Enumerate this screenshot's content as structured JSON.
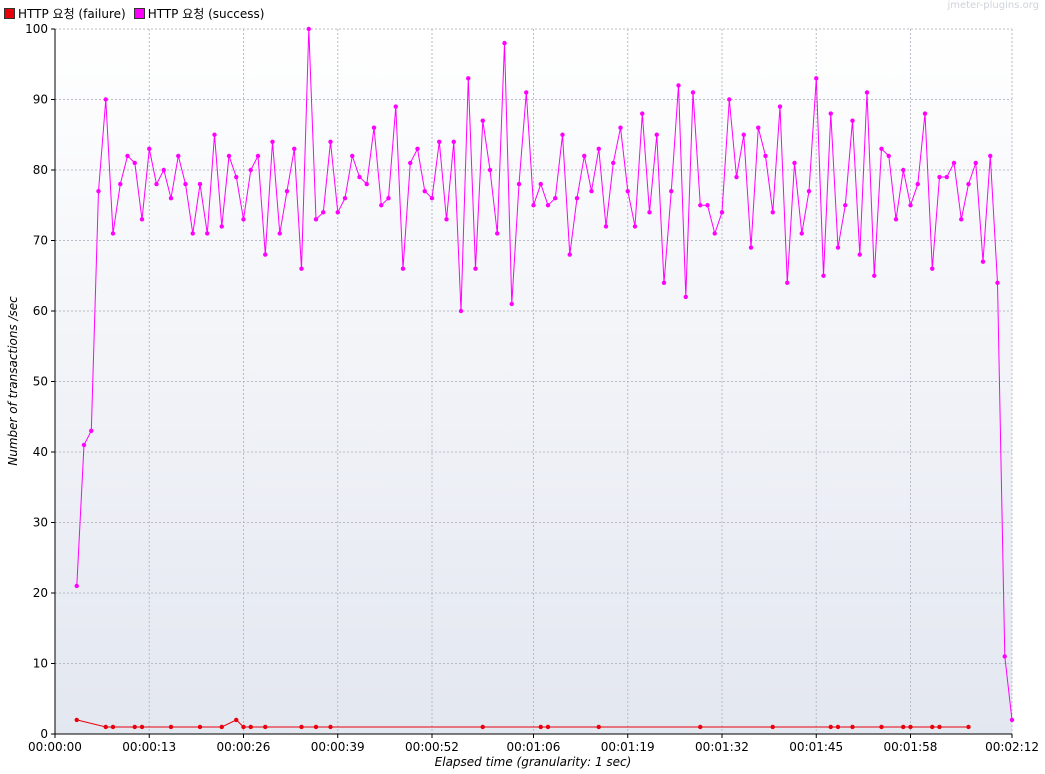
{
  "legend": {
    "failure_label": "HTTP 요청 (failure)",
    "success_label": "HTTP 요청 (success)"
  },
  "watermark": "jmeter-plugins.org",
  "colors": {
    "failure": "#e8000b",
    "success": "#ff00ff",
    "grid": "#b8bcc6",
    "bg_top": "#ffffff",
    "bg_bottom": "#e3e7f0"
  },
  "chart_data": {
    "type": "line",
    "title": "",
    "xlabel": "Elapsed time (granularity: 1 sec)",
    "ylabel": "Number of transactions /sec",
    "ylim": [
      0,
      100
    ],
    "xlim": [
      0,
      132
    ],
    "x_unit": "seconds",
    "yticks": [
      0,
      10,
      20,
      30,
      40,
      50,
      60,
      70,
      80,
      90,
      100
    ],
    "xticks": [
      {
        "value": 0,
        "label": "00:00:00"
      },
      {
        "value": 13,
        "label": "00:00:13"
      },
      {
        "value": 26,
        "label": "00:00:26"
      },
      {
        "value": 39,
        "label": "00:00:39"
      },
      {
        "value": 52,
        "label": "00:00:52"
      },
      {
        "value": 66,
        "label": "00:01:06"
      },
      {
        "value": 79,
        "label": "00:01:19"
      },
      {
        "value": 92,
        "label": "00:01:32"
      },
      {
        "value": 105,
        "label": "00:01:45"
      },
      {
        "value": 118,
        "label": "00:01:58"
      },
      {
        "value": 132,
        "label": "00:02:12"
      }
    ],
    "grid": true,
    "legend_position": "top-left",
    "series": [
      {
        "name": "HTTP 요청 (success)",
        "color": "#ff00ff",
        "points": [
          [
            3,
            21
          ],
          [
            4,
            41
          ],
          [
            5,
            43
          ],
          [
            6,
            77
          ],
          [
            7,
            90
          ],
          [
            8,
            71
          ],
          [
            9,
            78
          ],
          [
            10,
            82
          ],
          [
            11,
            81
          ],
          [
            12,
            73
          ],
          [
            13,
            83
          ],
          [
            14,
            78
          ],
          [
            15,
            80
          ],
          [
            16,
            76
          ],
          [
            17,
            82
          ],
          [
            18,
            78
          ],
          [
            19,
            71
          ],
          [
            20,
            78
          ],
          [
            21,
            71
          ],
          [
            22,
            85
          ],
          [
            23,
            72
          ],
          [
            24,
            82
          ],
          [
            25,
            79
          ],
          [
            26,
            73
          ],
          [
            27,
            80
          ],
          [
            28,
            82
          ],
          [
            29,
            68
          ],
          [
            30,
            84
          ],
          [
            31,
            71
          ],
          [
            32,
            77
          ],
          [
            33,
            83
          ],
          [
            34,
            66
          ],
          [
            35,
            100
          ],
          [
            36,
            73
          ],
          [
            37,
            74
          ],
          [
            38,
            84
          ],
          [
            39,
            74
          ],
          [
            40,
            76
          ],
          [
            41,
            82
          ],
          [
            42,
            79
          ],
          [
            43,
            78
          ],
          [
            44,
            86
          ],
          [
            45,
            75
          ],
          [
            46,
            76
          ],
          [
            47,
            89
          ],
          [
            48,
            66
          ],
          [
            49,
            81
          ],
          [
            50,
            83
          ],
          [
            51,
            77
          ],
          [
            52,
            76
          ],
          [
            53,
            84
          ],
          [
            54,
            73
          ],
          [
            55,
            84
          ],
          [
            56,
            60
          ],
          [
            57,
            93
          ],
          [
            58,
            66
          ],
          [
            59,
            87
          ],
          [
            60,
            80
          ],
          [
            61,
            71
          ],
          [
            62,
            98
          ],
          [
            63,
            61
          ],
          [
            64,
            78
          ],
          [
            65,
            91
          ],
          [
            66,
            75
          ],
          [
            67,
            78
          ],
          [
            68,
            75
          ],
          [
            69,
            76
          ],
          [
            70,
            85
          ],
          [
            71,
            68
          ],
          [
            72,
            76
          ],
          [
            73,
            82
          ],
          [
            74,
            77
          ],
          [
            75,
            83
          ],
          [
            76,
            72
          ],
          [
            77,
            81
          ],
          [
            78,
            86
          ],
          [
            79,
            77
          ],
          [
            80,
            72
          ],
          [
            81,
            88
          ],
          [
            82,
            74
          ],
          [
            83,
            85
          ],
          [
            84,
            64
          ],
          [
            85,
            77
          ],
          [
            86,
            92
          ],
          [
            87,
            62
          ],
          [
            88,
            91
          ],
          [
            89,
            75
          ],
          [
            90,
            75
          ],
          [
            91,
            71
          ],
          [
            92,
            74
          ],
          [
            93,
            90
          ],
          [
            94,
            79
          ],
          [
            95,
            85
          ],
          [
            96,
            69
          ],
          [
            97,
            86
          ],
          [
            98,
            82
          ],
          [
            99,
            74
          ],
          [
            100,
            89
          ],
          [
            101,
            64
          ],
          [
            102,
            81
          ],
          [
            103,
            71
          ],
          [
            104,
            77
          ],
          [
            105,
            93
          ],
          [
            106,
            65
          ],
          [
            107,
            88
          ],
          [
            108,
            69
          ],
          [
            109,
            75
          ],
          [
            110,
            87
          ],
          [
            111,
            68
          ],
          [
            112,
            91
          ],
          [
            113,
            65
          ],
          [
            114,
            83
          ],
          [
            115,
            82
          ],
          [
            116,
            73
          ],
          [
            117,
            80
          ],
          [
            118,
            75
          ],
          [
            119,
            78
          ],
          [
            120,
            88
          ],
          [
            121,
            66
          ],
          [
            122,
            79
          ],
          [
            123,
            79
          ],
          [
            124,
            81
          ],
          [
            125,
            73
          ],
          [
            126,
            78
          ],
          [
            127,
            81
          ],
          [
            128,
            67
          ],
          [
            129,
            82
          ],
          [
            130,
            64
          ],
          [
            131,
            11
          ],
          [
            132,
            2
          ]
        ]
      },
      {
        "name": "HTTP 요청 (failure)",
        "color": "#e8000b",
        "points": [
          [
            3,
            2
          ],
          [
            7,
            1
          ],
          [
            8,
            1
          ],
          [
            11,
            1
          ],
          [
            12,
            1
          ],
          [
            16,
            1
          ],
          [
            20,
            1
          ],
          [
            23,
            1
          ],
          [
            25,
            2
          ],
          [
            26,
            1
          ],
          [
            27,
            1
          ],
          [
            29,
            1
          ],
          [
            34,
            1
          ],
          [
            36,
            1
          ],
          [
            38,
            1
          ],
          [
            59,
            1
          ],
          [
            67,
            1
          ],
          [
            68,
            1
          ],
          [
            75,
            1
          ],
          [
            89,
            1
          ],
          [
            99,
            1
          ],
          [
            107,
            1
          ],
          [
            108,
            1
          ],
          [
            110,
            1
          ],
          [
            114,
            1
          ],
          [
            117,
            1
          ],
          [
            118,
            1
          ],
          [
            121,
            1
          ],
          [
            122,
            1
          ],
          [
            126,
            1
          ]
        ]
      }
    ]
  }
}
